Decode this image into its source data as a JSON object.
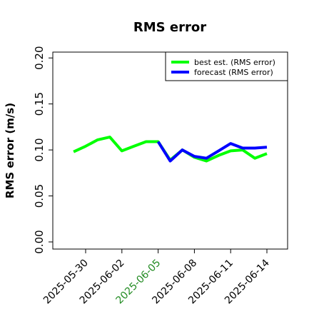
{
  "chart_data": {
    "type": "line",
    "title": "RMS error",
    "xlabel": "",
    "ylabel": "RMS error (m/s)",
    "ylim": [
      0,
      0.2
    ],
    "yticks": [
      "0.00",
      "0.05",
      "0.10",
      "0.15",
      "0.20"
    ],
    "ytick_values": [
      0,
      0.05,
      0.1,
      0.15,
      0.2
    ],
    "xticks": [
      "2025-05-30",
      "2025-06-02",
      "2025-06-05",
      "2025-06-08",
      "2025-06-11",
      "2025-06-14"
    ],
    "xtick_colors": [
      "#000000",
      "#000000",
      "#228b22",
      "#000000",
      "#000000",
      "#000000"
    ],
    "grid": false,
    "legend_position": "top-right",
    "series": [
      {
        "name": "best est. (RMS error)",
        "color": "#00ff00",
        "x": [
          "2025-05-29",
          "2025-05-30",
          "2025-05-31",
          "2025-06-01",
          "2025-06-02",
          "2025-06-03",
          "2025-06-04",
          "2025-06-05",
          "2025-06-06",
          "2025-06-07",
          "2025-06-08",
          "2025-06-09",
          "2025-06-10",
          "2025-06-11",
          "2025-06-12",
          "2025-06-13",
          "2025-06-14"
        ],
        "values": [
          0.098,
          0.104,
          0.111,
          0.114,
          0.099,
          0.104,
          0.109,
          0.109,
          0.089,
          0.1,
          0.092,
          0.088,
          0.094,
          0.099,
          0.1,
          0.091,
          0.096
        ]
      },
      {
        "name": "forecast (RMS error)",
        "color": "#0000ff",
        "x": [
          "2025-06-05",
          "2025-06-06",
          "2025-06-07",
          "2025-06-08",
          "2025-06-09",
          "2025-06-10",
          "2025-06-11",
          "2025-06-12",
          "2025-06-13",
          "2025-06-14"
        ],
        "values": [
          0.109,
          0.088,
          0.1,
          0.093,
          0.091,
          0.099,
          0.107,
          0.102,
          0.102,
          0.103
        ]
      }
    ]
  }
}
